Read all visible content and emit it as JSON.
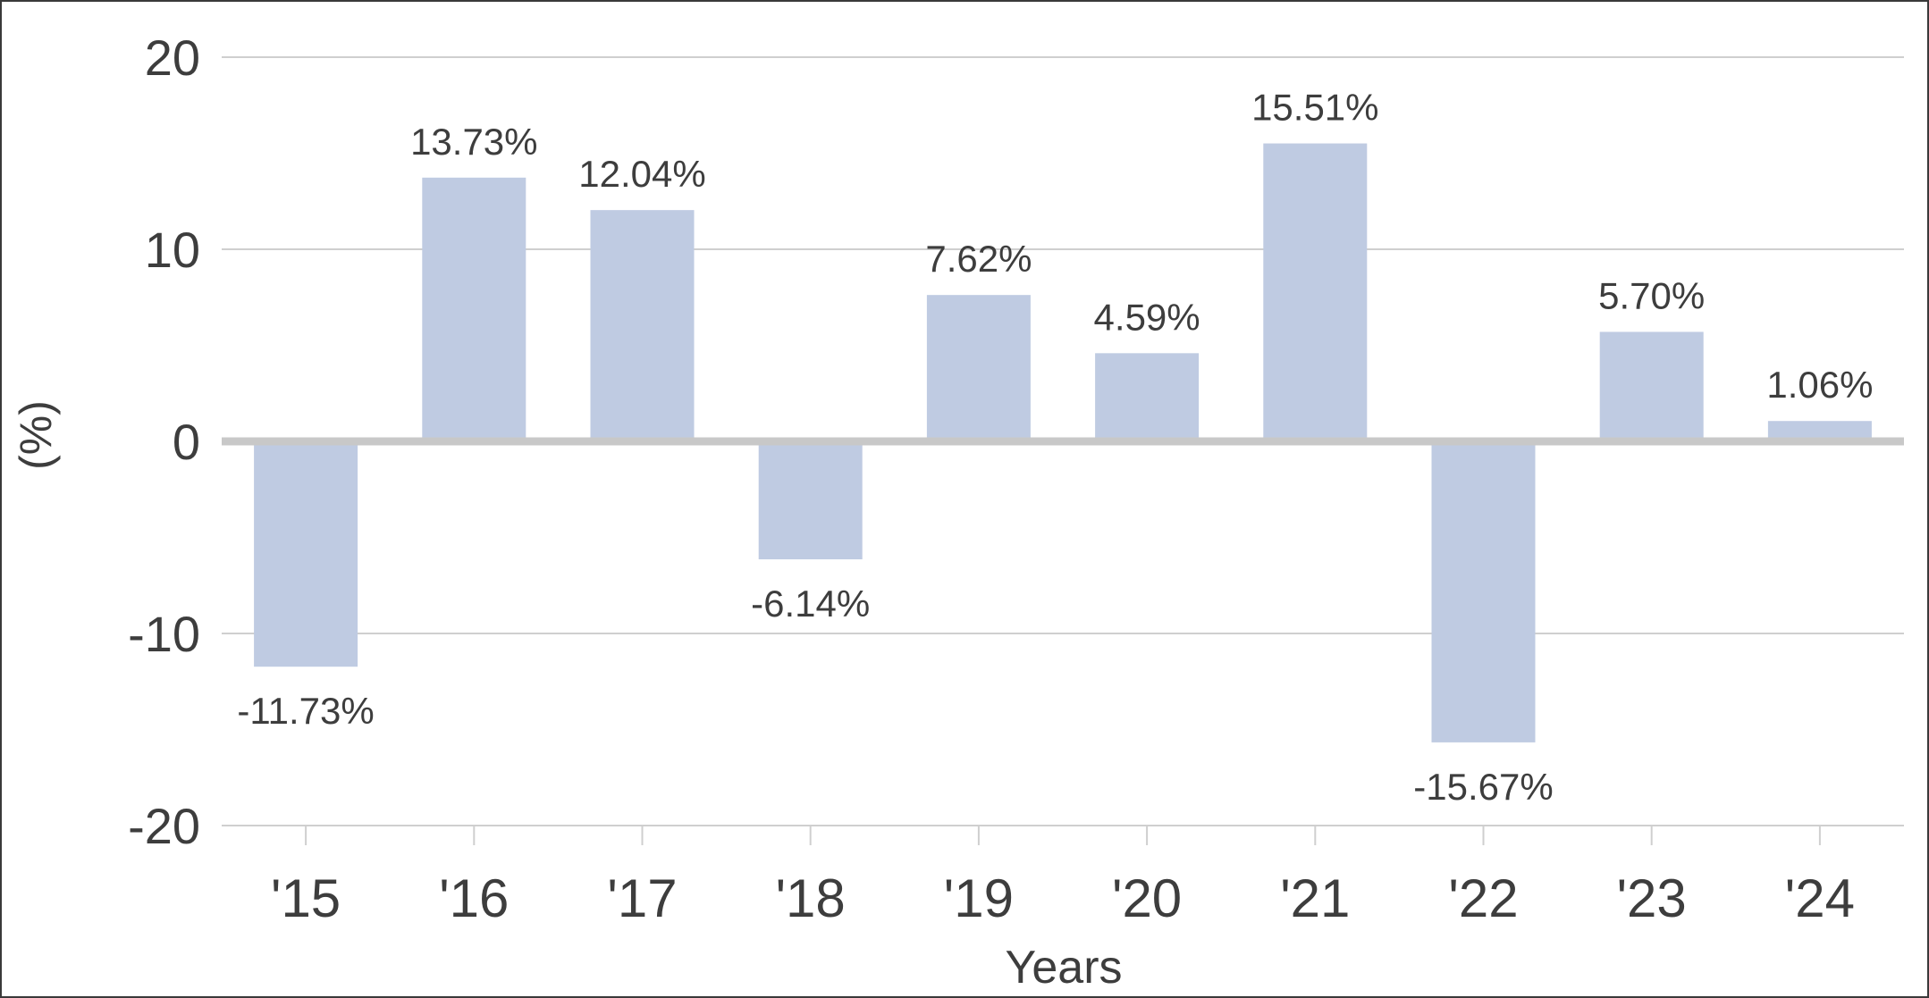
{
  "chart_data": {
    "type": "bar",
    "categories": [
      "'15",
      "'16",
      "'17",
      "'18",
      "'19",
      "'20",
      "'21",
      "'22",
      "'23",
      "'24"
    ],
    "values": [
      -11.73,
      13.73,
      12.04,
      -6.14,
      7.62,
      4.59,
      15.51,
      -15.67,
      5.7,
      1.06
    ],
    "data_labels": [
      "-11.73%",
      "13.73%",
      "12.04%",
      "-6.14%",
      "7.62%",
      "4.59%",
      "15.51%",
      "-15.67%",
      "5.70%",
      "1.06%"
    ],
    "xlabel": "Years",
    "ylabel": "(%)",
    "ylim": [
      -20,
      20
    ],
    "yticks": [
      20,
      10,
      0,
      -10,
      -20
    ],
    "ytick_labels": [
      "20",
      "10",
      "0",
      "-10",
      "-20"
    ],
    "grid": true,
    "legend": "none",
    "colors": {
      "bar": "#bfcbe2",
      "grid": "#cfcfcf",
      "zero_line": "#c8c8c8",
      "text": "#3d3d3d",
      "border": "#3a3a3a"
    }
  }
}
